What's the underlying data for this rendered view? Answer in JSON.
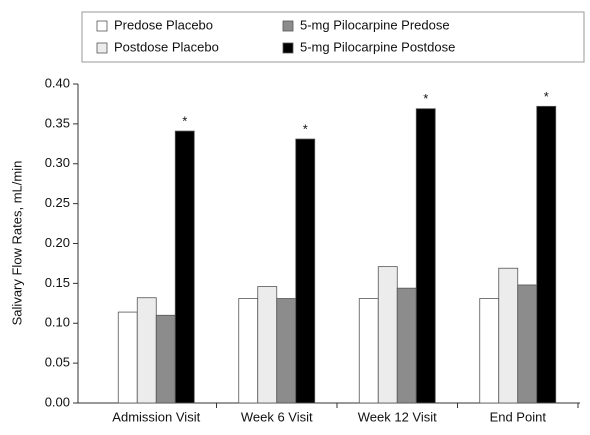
{
  "chart_data": {
    "type": "bar",
    "y_label": "Salivary Flow Rates, mL/min",
    "categories": [
      "Admission Visit",
      "Week 6 Visit",
      "Week 12 Visit",
      "End Point"
    ],
    "series": [
      {
        "name": "Predose Placebo",
        "color": "#ffffff",
        "values": [
          0.114,
          0.131,
          0.131,
          0.131
        ]
      },
      {
        "name": "Postdose Placebo",
        "color": "#ececec",
        "values": [
          0.132,
          0.146,
          0.171,
          0.169
        ]
      },
      {
        "name": "5-mg Pilocarpine Predose",
        "color": "#8c8c8c",
        "values": [
          0.11,
          0.131,
          0.144,
          0.148
        ]
      },
      {
        "name": "5-mg Pilocarpine Postdose",
        "color": "#000000",
        "values": [
          0.341,
          0.331,
          0.369,
          0.372
        ]
      }
    ],
    "annotations": [
      "*",
      "*",
      "*",
      "*"
    ],
    "ylim": [
      0,
      0.4
    ],
    "yticks": [
      {
        "value": 0,
        "label": "0.00"
      },
      {
        "value": 0.05,
        "label": "0.05"
      },
      {
        "value": 0.1,
        "label": "0.10"
      },
      {
        "value": 0.15,
        "label": "0.15"
      },
      {
        "value": 0.2,
        "label": "0.20"
      },
      {
        "value": 0.25,
        "label": "0.25"
      },
      {
        "value": 0.3,
        "label": "0.30"
      },
      {
        "value": 0.35,
        "label": "0.35"
      },
      {
        "value": 0.4,
        "label": "0.40"
      }
    ],
    "grid": false,
    "legend": "top"
  }
}
